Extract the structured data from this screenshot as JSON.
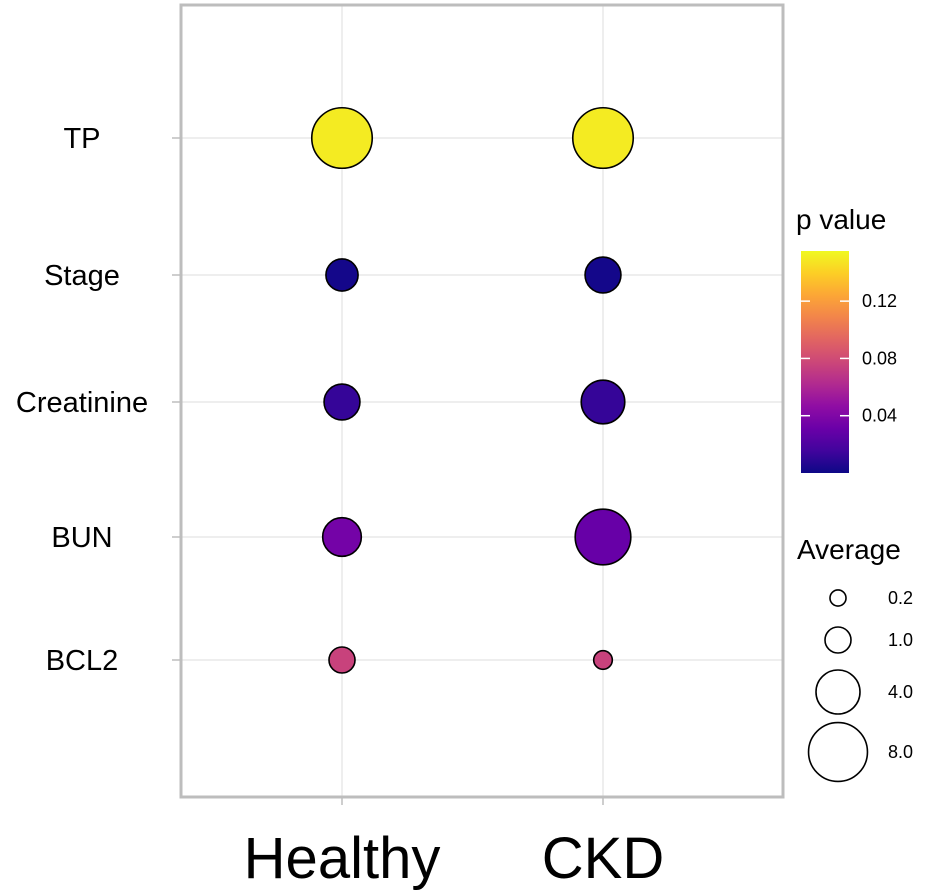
{
  "chart_data": {
    "type": "dot",
    "categories_x": [
      "Healthy",
      "CKD"
    ],
    "categories_y": [
      "TP",
      "Stage",
      "Creatinine",
      "BUN",
      "BCL2"
    ],
    "points": [
      {
        "x": "Healthy",
        "y": "TP",
        "average": 8.5,
        "p_value": 0.15
      },
      {
        "x": "CKD",
        "y": "TP",
        "average": 8.5,
        "p_value": 0.15
      },
      {
        "x": "Healthy",
        "y": "Stage",
        "average": 1.8,
        "p_value": 0.002
      },
      {
        "x": "CKD",
        "y": "Stage",
        "average": 2.4,
        "p_value": 0.002
      },
      {
        "x": "Healthy",
        "y": "Creatinine",
        "average": 2.4,
        "p_value": 0.012
      },
      {
        "x": "CKD",
        "y": "Creatinine",
        "average": 3.9,
        "p_value": 0.012
      },
      {
        "x": "Healthy",
        "y": "BUN",
        "average": 2.9,
        "p_value": 0.035
      },
      {
        "x": "CKD",
        "y": "BUN",
        "average": 7.0,
        "p_value": 0.03
      },
      {
        "x": "Healthy",
        "y": "BCL2",
        "average": 1.0,
        "p_value": 0.075
      },
      {
        "x": "CKD",
        "y": "BCL2",
        "average": 0.35,
        "p_value": 0.075
      }
    ],
    "color_legend": {
      "title": "p value",
      "range": [
        0.0,
        0.155
      ],
      "ticks": [
        0.04,
        0.08,
        0.12
      ],
      "tick_labels": [
        "0.04",
        "0.08",
        "0.12"
      ],
      "colors": [
        "#0d0887",
        "#41049d",
        "#6a00a8",
        "#8f0da4",
        "#b12a90",
        "#cc4778",
        "#e16462",
        "#f2844b",
        "#fca636",
        "#fcce25",
        "#f0f921"
      ]
    },
    "size_legend": {
      "title": "Average",
      "values": [
        0.2,
        1.0,
        4.0,
        8.0
      ],
      "labels": [
        "0.2",
        "1.0",
        "4.0",
        "8.0"
      ]
    },
    "grid": true
  }
}
